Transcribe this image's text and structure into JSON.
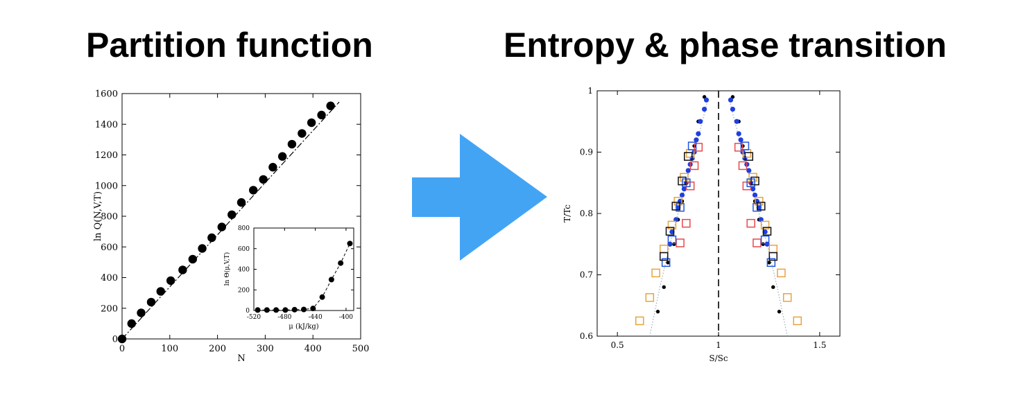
{
  "headings": {
    "left": "Partition function",
    "right": "Entropy & phase transition"
  },
  "arrow": {
    "color": "#44A4F4",
    "icon": "right-arrow-icon"
  },
  "chart_data": [
    {
      "id": "partition",
      "type": "scatter",
      "xlabel": "N",
      "ylabel": "ln Q(N,V,T)",
      "xlim": [
        0,
        500
      ],
      "ylim": [
        0,
        1600
      ],
      "xticks": [
        0,
        100,
        200,
        300,
        400,
        500
      ],
      "yticks": [
        0,
        200,
        400,
        600,
        800,
        1000,
        1200,
        1400,
        1600
      ],
      "fit_line": {
        "x": [
          0,
          455
        ],
        "y": [
          0,
          1545
        ],
        "style": "dash-dot"
      },
      "series": [
        {
          "marker": "filled-circle",
          "color": "#000000",
          "x": [
            0,
            20,
            40,
            61,
            81,
            102,
            127,
            148,
            168,
            188,
            209,
            230,
            250,
            275,
            296,
            316,
            336,
            356,
            377,
            397,
            418,
            437
          ],
          "y": [
            0,
            100,
            170,
            240,
            310,
            380,
            450,
            520,
            590,
            660,
            730,
            810,
            890,
            970,
            1040,
            1120,
            1190,
            1270,
            1340,
            1410,
            1460,
            1520
          ]
        }
      ]
    },
    {
      "id": "partition-inset",
      "type": "scatter",
      "xlabel": "μ (kJ/kg)",
      "ylabel": "ln Θ(μ,V,T)",
      "xlim": [
        -520,
        -390
      ],
      "ylim": [
        0,
        800
      ],
      "xticks": [
        -520,
        -480,
        -440,
        -400
      ],
      "yticks": [
        0,
        200,
        400,
        600,
        800
      ],
      "series": [
        {
          "marker": "filled-circle",
          "color": "#000000",
          "line": "dashed",
          "x": [
            -515,
            -503,
            -491,
            -479,
            -467,
            -455,
            -443,
            -431,
            -419,
            -407,
            -395
          ],
          "y": [
            5,
            5,
            5,
            5,
            8,
            10,
            20,
            130,
            300,
            460,
            650
          ]
        }
      ]
    },
    {
      "id": "entropy",
      "type": "scatter",
      "xlabel": "S/Sc",
      "ylabel": "T/Tc",
      "xlim": [
        0.4,
        1.6
      ],
      "ylim": [
        0.6,
        1.0
      ],
      "xticks": [
        0.5,
        1,
        1.5
      ],
      "yticks": [
        0.6,
        0.7,
        0.8,
        0.9,
        1
      ],
      "critical_line": {
        "x": 1,
        "style": "dashed"
      },
      "guide_curves": {
        "style": "dotted",
        "left": {
          "x": [
            0.66,
            0.71,
            0.76,
            0.8,
            0.84,
            0.88,
            0.92,
            0.95
          ],
          "y": [
            0.6,
            0.68,
            0.75,
            0.8,
            0.85,
            0.9,
            0.95,
            0.99
          ]
        },
        "right": {
          "x": [
            1.34,
            1.29,
            1.24,
            1.2,
            1.16,
            1.12,
            1.08,
            1.05
          ],
          "y": [
            0.6,
            0.68,
            0.75,
            0.8,
            0.85,
            0.9,
            0.95,
            0.99
          ]
        }
      },
      "series": [
        {
          "marker": "filled-circle-small",
          "color": "#000000",
          "x": [
            0.7,
            0.73,
            0.75,
            0.78,
            0.8,
            0.82,
            0.84,
            0.86,
            0.88,
            0.9,
            0.93,
            1.07,
            1.1,
            1.12,
            1.14,
            1.16,
            1.18,
            1.2,
            1.22,
            1.25,
            1.27,
            1.3
          ],
          "y": [
            0.64,
            0.68,
            0.72,
            0.75,
            0.79,
            0.82,
            0.85,
            0.88,
            0.91,
            0.95,
            0.99,
            0.99,
            0.95,
            0.91,
            0.88,
            0.85,
            0.82,
            0.79,
            0.75,
            0.72,
            0.68,
            0.64
          ]
        },
        {
          "marker": "filled-circle",
          "color": "#1F3FE0",
          "x": [
            0.76,
            0.77,
            0.79,
            0.8,
            0.81,
            0.82,
            0.83,
            0.84,
            0.85,
            0.86,
            0.87,
            0.88,
            0.89,
            0.9,
            0.91,
            0.93,
            0.94,
            1.06,
            1.07,
            1.09,
            1.1,
            1.11,
            1.12,
            1.13,
            1.14,
            1.15,
            1.16,
            1.17,
            1.18,
            1.19,
            1.2,
            1.21,
            1.23,
            1.24
          ],
          "y": [
            0.75,
            0.77,
            0.79,
            0.81,
            0.82,
            0.83,
            0.84,
            0.85,
            0.87,
            0.88,
            0.89,
            0.9,
            0.92,
            0.93,
            0.95,
            0.97,
            0.985,
            0.985,
            0.97,
            0.95,
            0.93,
            0.92,
            0.9,
            0.89,
            0.88,
            0.87,
            0.85,
            0.84,
            0.83,
            0.82,
            0.81,
            0.79,
            0.77,
            0.75
          ]
        },
        {
          "marker": "open-square",
          "color": "#E8A33C",
          "x": [
            0.61,
            0.66,
            0.69,
            0.73,
            0.77,
            0.8,
            0.83,
            0.86,
            1.14,
            1.17,
            1.2,
            1.23,
            1.27,
            1.31,
            1.34,
            1.39
          ],
          "y": [
            0.625,
            0.663,
            0.703,
            0.742,
            0.781,
            0.82,
            0.859,
            0.898,
            0.898,
            0.859,
            0.82,
            0.781,
            0.742,
            0.703,
            0.663,
            0.625
          ]
        },
        {
          "marker": "open-square",
          "color": "#E8474A",
          "x": [
            0.81,
            0.84,
            0.86,
            0.88,
            0.9,
            1.1,
            1.12,
            1.14,
            1.16,
            1.19
          ],
          "y": [
            0.752,
            0.784,
            0.845,
            0.878,
            0.908,
            0.908,
            0.878,
            0.845,
            0.784,
            0.752
          ]
        },
        {
          "marker": "open-square",
          "color": "#2255DD",
          "x": [
            0.74,
            0.77,
            0.81,
            0.84,
            0.87,
            1.13,
            1.16,
            1.19,
            1.23,
            1.26
          ],
          "y": [
            0.72,
            0.757,
            0.81,
            0.85,
            0.91,
            0.91,
            0.85,
            0.81,
            0.757,
            0.72
          ]
        },
        {
          "marker": "open-square",
          "color": "#111111",
          "x": [
            0.73,
            0.76,
            0.79,
            0.82,
            0.85,
            1.15,
            1.18,
            1.21,
            1.24,
            1.27
          ],
          "y": [
            0.73,
            0.771,
            0.812,
            0.853,
            0.893,
            0.893,
            0.853,
            0.812,
            0.771,
            0.73
          ]
        }
      ]
    }
  ]
}
